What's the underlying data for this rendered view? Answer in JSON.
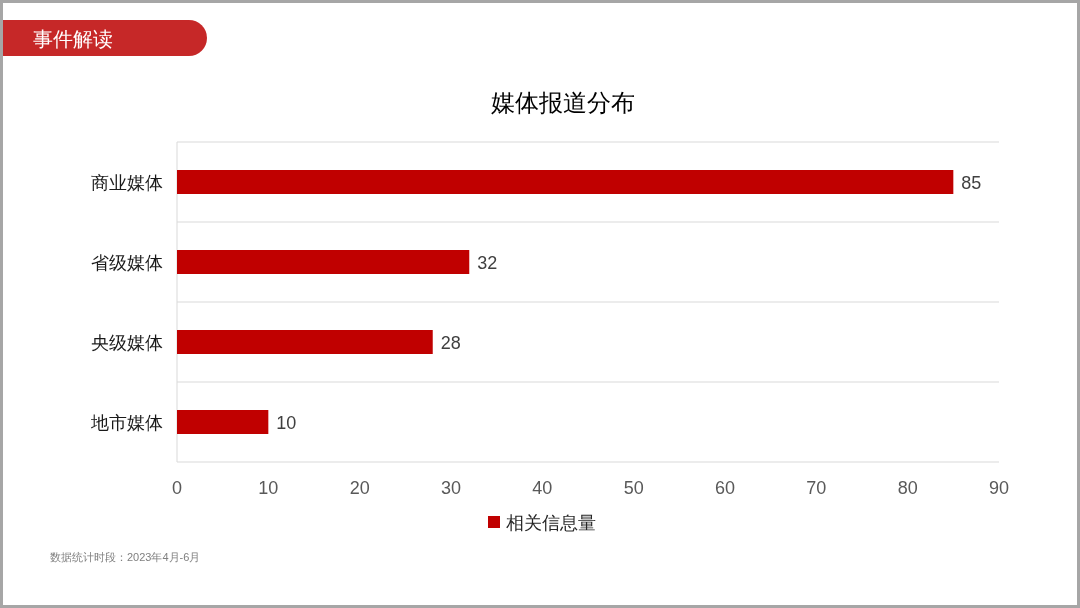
{
  "chart_data": {
    "type": "bar",
    "orientation": "horizontal",
    "title": "媒体报道分布",
    "categories": [
      "商业媒体",
      "省级媒体",
      "央级媒体",
      "地市媒体"
    ],
    "series": [
      {
        "name": "相关信息量",
        "color": "#c00000",
        "values": [
          85,
          32,
          28,
          10
        ]
      }
    ],
    "xlim": [
      0,
      90
    ],
    "xticks": [
      0,
      10,
      20,
      30,
      40,
      50,
      60,
      70,
      80,
      90
    ],
    "data_labels": true,
    "grid": "y",
    "legend": "bottom",
    "annotations": [
      "事件解读",
      "数据统计时段：2023年4月-6月"
    ]
  }
}
